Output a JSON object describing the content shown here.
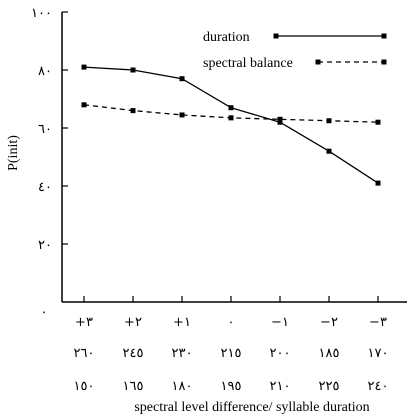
{
  "chart_data": {
    "type": "line",
    "ylabel": "P(init)",
    "xlabel": "spectral level difference/ syllable duration",
    "ylim": [
      0,
      100
    ],
    "yticks": [
      {
        "value": 20,
        "label": "٢٠"
      },
      {
        "value": 40,
        "label": "٤٠"
      },
      {
        "value": 60,
        "label": "٦٠"
      },
      {
        "value": 80,
        "label": "٨٠"
      },
      {
        "value": 100,
        "label": "١٠٠"
      }
    ],
    "corner_label": "٠",
    "x_label_rows": [
      [
        "+٣",
        "+٢",
        "+١",
        "٠",
        "−١",
        "−٢",
        "−٣"
      ],
      [
        "٢٦٠",
        "٢٤٥",
        "٢٣٠",
        "٢١٥",
        "٢٠٠",
        "١٨٥",
        "١٧٠"
      ],
      [
        "١٥٠",
        "١٦٥",
        "١٨٠",
        "١٩٥",
        "٢١٠",
        "٢٢٥",
        "٢٤٠"
      ]
    ],
    "legend_position": "top-right",
    "grid": false,
    "series": [
      {
        "name": "duration",
        "style": "solid",
        "values": [
          81,
          80,
          77,
          67,
          62,
          52,
          41
        ]
      },
      {
        "name": "spectral balance",
        "style": "dashed",
        "values": [
          68,
          66,
          64.5,
          63.5,
          63,
          62.5,
          62
        ]
      }
    ]
  }
}
